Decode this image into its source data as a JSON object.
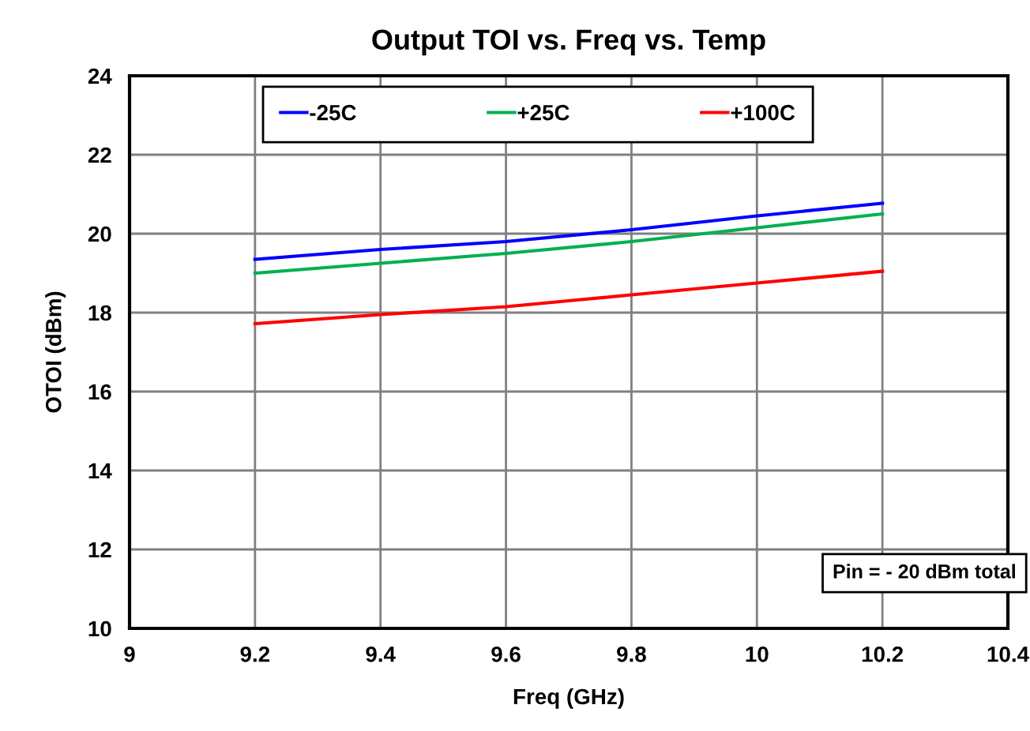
{
  "chart_data": {
    "type": "line",
    "title": "Output TOI vs. Freq vs. Temp",
    "xlabel": "Freq (GHz)",
    "ylabel": "OTOI (dBm)",
    "xlim": [
      9,
      10.4
    ],
    "xticks": [
      9,
      9.2,
      9.4,
      9.6,
      9.8,
      10,
      10.2,
      10.4
    ],
    "ylim": [
      10,
      24
    ],
    "yticks": [
      10,
      12,
      14,
      16,
      18,
      20,
      22,
      24
    ],
    "grid": true,
    "legend": "top",
    "marker": "none",
    "line_style": "solid",
    "annotations": [
      "Pin = - 20 dBm total"
    ],
    "series": [
      {
        "name": "-25C",
        "color": "#0000ff",
        "x": [
          9.2,
          9.4,
          9.6,
          9.8,
          10,
          10.2
        ],
        "values": [
          19.35,
          19.6,
          19.8,
          20.1,
          20.45,
          20.77
        ]
      },
      {
        "name": "+25C",
        "color": "#00b050",
        "x": [
          9.2,
          9.4,
          9.6,
          9.8,
          10,
          10.2
        ],
        "values": [
          19.0,
          19.25,
          19.5,
          19.8,
          20.15,
          20.5
        ]
      },
      {
        "name": "+100C",
        "color": "#ff0000",
        "x": [
          9.2,
          9.4,
          9.6,
          9.7,
          9.8,
          10,
          10.2
        ],
        "values": [
          17.72,
          17.95,
          18.15,
          18.3,
          18.45,
          18.75,
          19.05
        ]
      }
    ]
  }
}
